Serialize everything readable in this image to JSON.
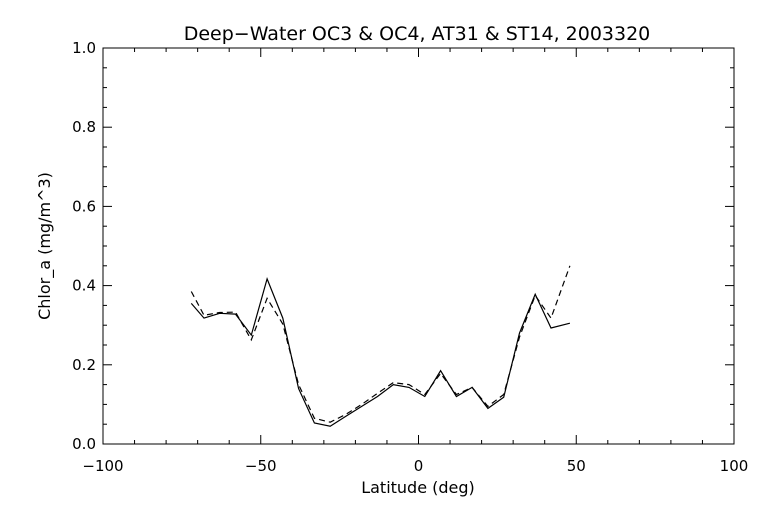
{
  "chart_data": {
    "type": "line",
    "title": "Deep−Water OC3 & OC4, AT31 & ST14, 2003320",
    "xlabel": "Latitude (deg)",
    "ylabel": "Chlor_a (mg/m^3)",
    "xlim": [
      -100,
      100
    ],
    "ylim": [
      0,
      1.0
    ],
    "x_ticks": [
      -100,
      -50,
      0,
      50,
      100
    ],
    "x_tick_labels": [
      "−100",
      "−50",
      "0",
      "50",
      "100"
    ],
    "y_ticks": [
      0.0,
      0.2,
      0.4,
      0.6,
      0.8,
      1.0
    ],
    "y_tick_labels": [
      "0.0",
      "0.2",
      "0.4",
      "0.6",
      "0.8",
      "1.0"
    ],
    "grid": false,
    "series": [
      {
        "style": "solid",
        "color": "#000000",
        "points": [
          [
            -72,
            0.355
          ],
          [
            -68,
            0.318
          ],
          [
            -63,
            0.33
          ],
          [
            -58,
            0.328
          ],
          [
            -53,
            0.275
          ],
          [
            -48,
            0.417
          ],
          [
            -43,
            0.318
          ],
          [
            -38,
            0.14
          ],
          [
            -33,
            0.053
          ],
          [
            -28,
            0.045
          ],
          [
            -23,
            0.07
          ],
          [
            -18,
            0.095
          ],
          [
            -13,
            0.12
          ],
          [
            -8,
            0.15
          ],
          [
            -3,
            0.143
          ],
          [
            2,
            0.12
          ],
          [
            7,
            0.185
          ],
          [
            12,
            0.12
          ],
          [
            17,
            0.143
          ],
          [
            22,
            0.09
          ],
          [
            27,
            0.118
          ],
          [
            32,
            0.28
          ],
          [
            37,
            0.378
          ],
          [
            42,
            0.293
          ],
          [
            48,
            0.305
          ]
        ]
      },
      {
        "style": "dashed",
        "color": "#000000",
        "points": [
          [
            -72,
            0.385
          ],
          [
            -68,
            0.325
          ],
          [
            -63,
            0.332
          ],
          [
            -58,
            0.333
          ],
          [
            -53,
            0.263
          ],
          [
            -48,
            0.368
          ],
          [
            -43,
            0.303
          ],
          [
            -38,
            0.15
          ],
          [
            -33,
            0.065
          ],
          [
            -28,
            0.055
          ],
          [
            -23,
            0.075
          ],
          [
            -18,
            0.1
          ],
          [
            -13,
            0.128
          ],
          [
            -8,
            0.155
          ],
          [
            -3,
            0.15
          ],
          [
            2,
            0.125
          ],
          [
            7,
            0.178
          ],
          [
            12,
            0.125
          ],
          [
            17,
            0.143
          ],
          [
            22,
            0.095
          ],
          [
            27,
            0.125
          ],
          [
            32,
            0.27
          ],
          [
            37,
            0.375
          ],
          [
            42,
            0.318
          ],
          [
            48,
            0.45
          ]
        ]
      }
    ]
  }
}
